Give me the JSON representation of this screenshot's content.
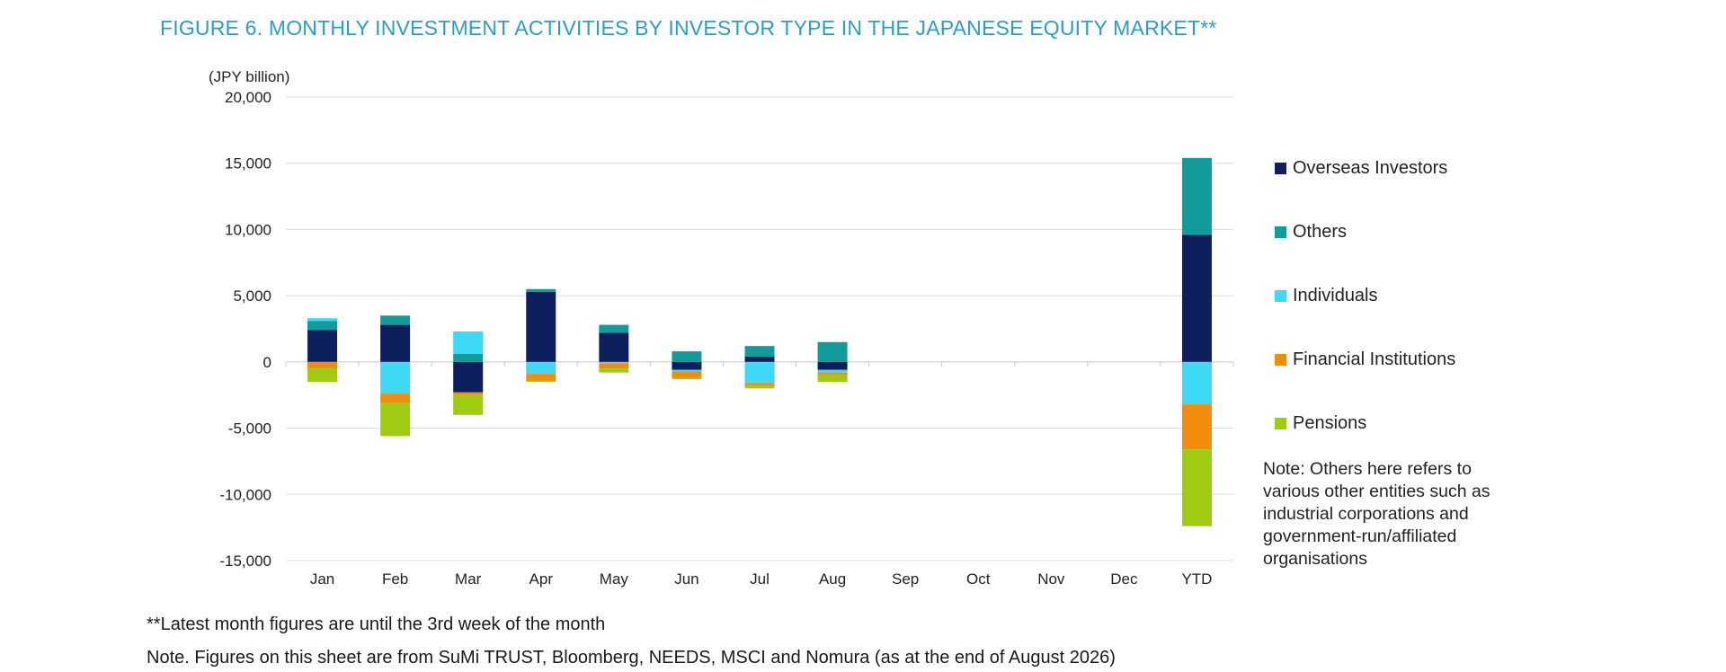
{
  "figure": {
    "title": "FIGURE 6. MONTHLY INVESTMENT ACTIVITIES BY INVESTOR TYPE IN THE JAPANESE EQUITY MARKET**"
  },
  "chart_data": {
    "type": "bar",
    "stacked": true,
    "title": "",
    "xlabel": "",
    "ylabel": "(JPY billion)",
    "ylim": [
      -15000,
      20000
    ],
    "yticks": [
      20000,
      15000,
      10000,
      5000,
      0,
      -5000,
      -10000,
      -15000
    ],
    "ytick_labels": [
      "20,000",
      "15,000",
      "10,000",
      "5,000",
      "0",
      "-5,000",
      "-10,000",
      "-15,000"
    ],
    "grid": true,
    "legend_position": "right",
    "categories": [
      "Jan",
      "Feb",
      "Mar",
      "Apr",
      "May",
      "Jun",
      "Jul",
      "Aug",
      "Sep",
      "Oct",
      "Nov",
      "Dec",
      "YTD"
    ],
    "series": [
      {
        "name": "Overseas Investors",
        "color": "#0d1f5c",
        "values": [
          2400,
          2800,
          -2300,
          5300,
          2200,
          -600,
          400,
          -600,
          0,
          0,
          0,
          0,
          9600
        ]
      },
      {
        "name": "Others",
        "color": "#139a9b",
        "values": [
          700,
          700,
          600,
          200,
          600,
          800,
          800,
          1500,
          0,
          0,
          0,
          0,
          5800
        ]
      },
      {
        "name": "Individuals",
        "color": "#3dd9f5",
        "values": [
          200,
          -2400,
          1700,
          -900,
          -100,
          -100,
          -1600,
          -200,
          0,
          0,
          0,
          0,
          -3200
        ]
      },
      {
        "name": "Financial Institutions",
        "color": "#f28c0f",
        "values": [
          -500,
          -700,
          -200,
          -500,
          -400,
          -500,
          -200,
          -200,
          0,
          0,
          0,
          0,
          -3400
        ]
      },
      {
        "name": "Pensions",
        "color": "#9fcc12",
        "values": [
          -1000,
          -2500,
          -1500,
          -100,
          -300,
          -100,
          -200,
          -500,
          0,
          0,
          0,
          0,
          -5800
        ]
      }
    ]
  },
  "legend_order": [
    "Overseas Investors",
    "Others",
    "Individuals",
    "Financial Institutions",
    "Pensions"
  ],
  "note": "Note: Others here refers to various other entities such as industrial corporations and government-run/affiliated organisations",
  "footnotes": {
    "latest_month": "**Latest month figures are until the 3rd week of the month",
    "source": "Note. Figures on this sheet are from SuMi TRUST, Bloomberg, NEEDS, MSCI and Nomura (as at the end of August 2026)"
  }
}
